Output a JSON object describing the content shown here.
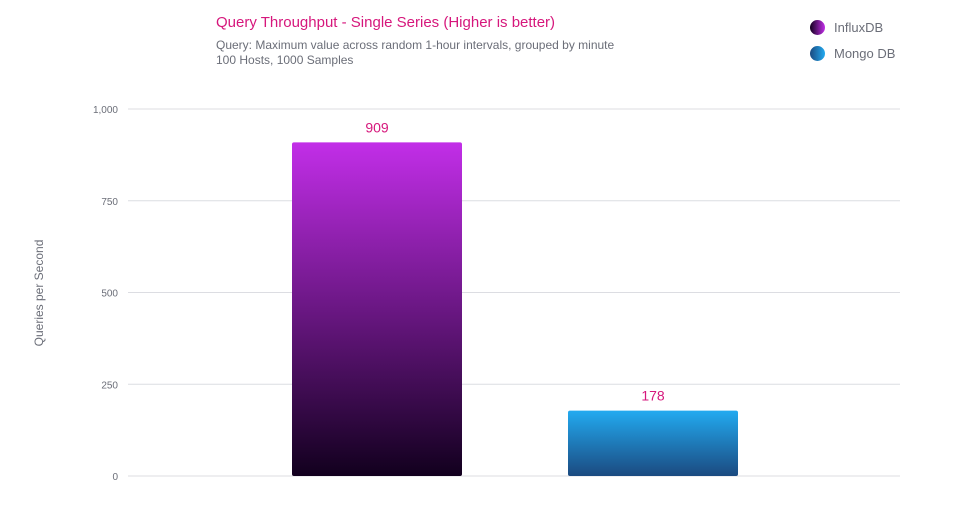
{
  "chart_data": {
    "type": "bar",
    "title": "Query Throughput - Single Series (Higher is better)",
    "subtitle": [
      "Query: Maximum value across random 1-hour intervals, grouped by minute",
      "100 Hosts, 1000 Samples"
    ],
    "ylabel": "Queries per Second",
    "xlabel": "",
    "ylim": [
      0,
      1000
    ],
    "yticks": [
      0,
      250,
      500,
      750,
      1000
    ],
    "ytick_labels": [
      "0",
      "250",
      "500",
      "750",
      "1,000"
    ],
    "grid": true,
    "legend_placement": "top-right",
    "categories": [
      "InfluxDB",
      "Mongo DB"
    ],
    "values": [
      909,
      178
    ],
    "colors": [
      {
        "top": "#c22ee8",
        "bottom": "#12001e"
      },
      {
        "top": "#22aaf0",
        "bottom": "#1b4a80"
      }
    ],
    "label_color": "#d6177c"
  }
}
